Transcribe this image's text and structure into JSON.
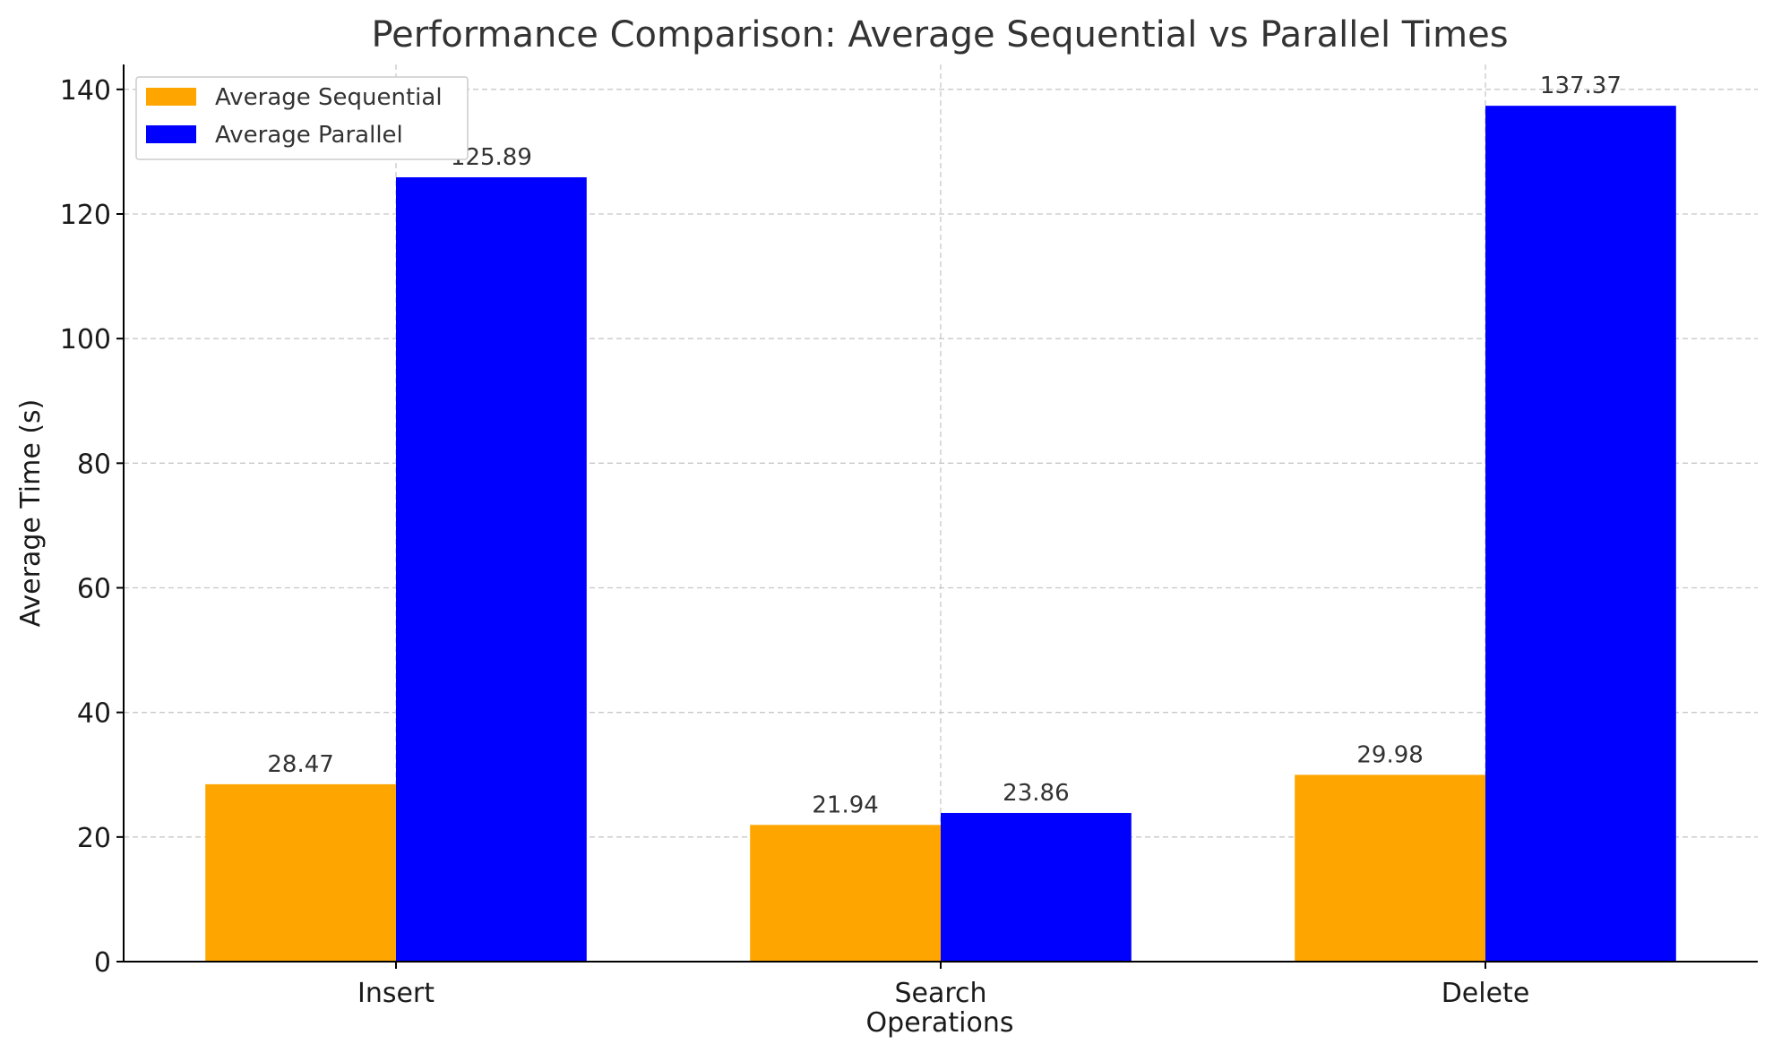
{
  "chart_data": {
    "type": "bar",
    "title": "Performance Comparison: Average Sequential vs Parallel Times",
    "xlabel": "Operations",
    "ylabel": "Average Time (s)",
    "categories": [
      "Insert",
      "Search",
      "Delete"
    ],
    "series": [
      {
        "name": "Average Sequential",
        "color": "#FFA500",
        "values": [
          28.47,
          21.94,
          29.98
        ],
        "labels": [
          "28.47",
          "21.94",
          "29.98"
        ]
      },
      {
        "name": "Average Parallel",
        "color": "#0000FF",
        "values": [
          125.89,
          23.86,
          137.37
        ],
        "labels": [
          "125.89",
          "23.86",
          "137.37"
        ]
      }
    ],
    "ylim": [
      0,
      144
    ],
    "yticks": [
      0,
      20,
      40,
      60,
      80,
      100,
      120,
      140
    ],
    "grid": true,
    "legend_position": "top-left"
  }
}
